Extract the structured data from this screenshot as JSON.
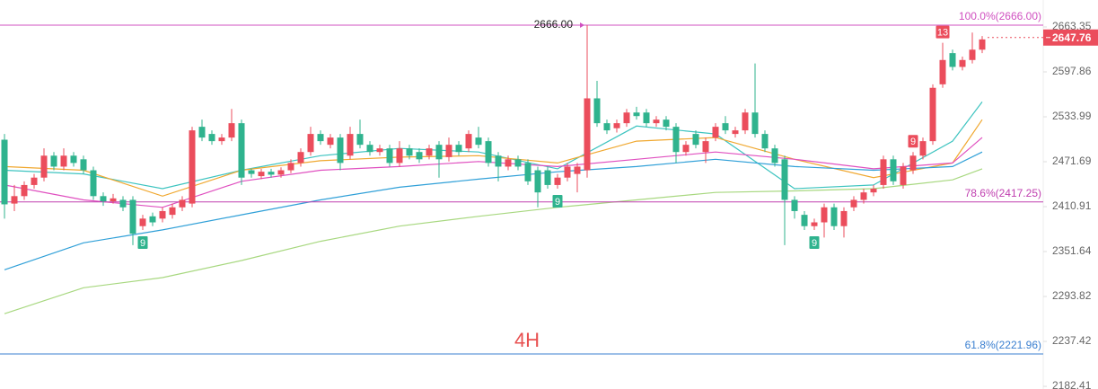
{
  "chart_data": {
    "type": "candlestick",
    "watermark": "4H",
    "log_scale": true,
    "ylim": [
      2179.2,
      2703.4
    ],
    "yticks": [
      2663.35,
      2597.86,
      2533.99,
      2471.69,
      2410.91,
      2351.64,
      2293.82,
      2237.42,
      2182.41
    ],
    "up_color": "#eb4d5c",
    "down_color": "#2fb38e",
    "categories": [
      null,
      null,
      null,
      null,
      null,
      null,
      null,
      null,
      null,
      null,
      null,
      null,
      null,
      null,
      null,
      null,
      null,
      null,
      null,
      null,
      null,
      null,
      null,
      null,
      null,
      null,
      null,
      null,
      null,
      null,
      null,
      null,
      null,
      null,
      null,
      null,
      null,
      null,
      null,
      null,
      null,
      null,
      null,
      null,
      null,
      null,
      null,
      null,
      null,
      null,
      null,
      null,
      null,
      null,
      null,
      null,
      null,
      null,
      null,
      null,
      null,
      null,
      null,
      null,
      null,
      null,
      null,
      null,
      null,
      null,
      null,
      null,
      null,
      null,
      null,
      null,
      null,
      null,
      null,
      null,
      null,
      null,
      null,
      null,
      null,
      null,
      null,
      null,
      null,
      null,
      null,
      null,
      null,
      null,
      null,
      null,
      null,
      null,
      null,
      null
    ],
    "open": [
      2502,
      2415,
      2425,
      2440,
      2450,
      2480,
      2465,
      2480,
      2475,
      2460,
      2425,
      2418,
      2420,
      2420,
      2385,
      2398,
      2395,
      2400,
      2410,
      2415,
      2520,
      2510,
      2500,
      2505,
      2525,
      2460,
      2452,
      2458,
      2454,
      2460,
      2470,
      2485,
      2510,
      2495,
      2505,
      2480,
      2510,
      2495,
      2485,
      2490,
      2470,
      2490,
      2485,
      2480,
      2495,
      2478,
      2495,
      2490,
      2505,
      2500,
      2480,
      2465,
      2475,
      2470,
      2460,
      2460,
      2440,
      2450,
      2455,
      2460,
      2560,
      2525,
      2518,
      2525,
      2540,
      2540,
      2525,
      2530,
      2520,
      2485,
      2510,
      2485,
      2505,
      2525,
      2510,
      2515,
      2540,
      2510,
      2490,
      2475,
      2420,
      2400,
      2385,
      2390,
      2410,
      2385,
      2410,
      2420,
      2430,
      2440,
      2475,
      2440,
      2460,
      2480,
      2500,
      2580,
      2625,
      2605,
      2615,
      2630
    ],
    "high": [
      2510,
      2440,
      2445,
      2455,
      2490,
      2485,
      2490,
      2485,
      2480,
      2465,
      2430,
      2428,
      2425,
      2425,
      2400,
      2403,
      2410,
      2415,
      2425,
      2520,
      2530,
      2515,
      2510,
      2545,
      2530,
      2462,
      2462,
      2462,
      2464,
      2475,
      2490,
      2520,
      2515,
      2510,
      2510,
      2520,
      2530,
      2500,
      2495,
      2495,
      2500,
      2495,
      2490,
      2495,
      2500,
      2505,
      2500,
      2515,
      2520,
      2505,
      2485,
      2480,
      2480,
      2475,
      2465,
      2465,
      2455,
      2470,
      2470,
      2666,
      2585,
      2530,
      2530,
      2545,
      2548,
      2545,
      2535,
      2535,
      2525,
      2500,
      2515,
      2505,
      2525,
      2535,
      2520,
      2545,
      2610,
      2515,
      2495,
      2480,
      2425,
      2405,
      2395,
      2415,
      2415,
      2410,
      2425,
      2435,
      2440,
      2480,
      2480,
      2470,
      2485,
      2505,
      2580,
      2640,
      2630,
      2620,
      2655,
      2650
    ],
    "low": [
      2395,
      2405,
      2420,
      2435,
      2445,
      2460,
      2460,
      2465,
      2455,
      2420,
      2412,
      2415,
      2405,
      2360,
      2380,
      2385,
      2390,
      2395,
      2405,
      2410,
      2500,
      2495,
      2495,
      2500,
      2440,
      2450,
      2448,
      2450,
      2450,
      2456,
      2465,
      2480,
      2495,
      2490,
      2460,
      2475,
      2490,
      2480,
      2480,
      2465,
      2465,
      2475,
      2470,
      2475,
      2450,
      2472,
      2480,
      2485,
      2490,
      2465,
      2445,
      2460,
      2460,
      2440,
      2410,
      2435,
      2435,
      2445,
      2430,
      2450,
      2520,
      2510,
      2512,
      2520,
      2530,
      2520,
      2520,
      2515,
      2470,
      2480,
      2490,
      2470,
      2500,
      2510,
      2505,
      2510,
      2505,
      2485,
      2465,
      2360,
      2395,
      2380,
      2380,
      2370,
      2380,
      2370,
      2405,
      2415,
      2425,
      2435,
      2440,
      2435,
      2455,
      2475,
      2495,
      2575,
      2600,
      2600,
      2610,
      2625
    ],
    "close": [
      2414,
      2425,
      2440,
      2450,
      2480,
      2465,
      2480,
      2470,
      2460,
      2425,
      2418,
      2422,
      2410,
      2375,
      2395,
      2390,
      2405,
      2410,
      2420,
      2515,
      2505,
      2500,
      2505,
      2525,
      2450,
      2455,
      2458,
      2454,
      2460,
      2470,
      2485,
      2510,
      2500,
      2505,
      2470,
      2510,
      2495,
      2485,
      2490,
      2470,
      2490,
      2480,
      2475,
      2490,
      2475,
      2495,
      2485,
      2510,
      2495,
      2470,
      2465,
      2475,
      2465,
      2445,
      2430,
      2440,
      2450,
      2465,
      2465,
      2560,
      2525,
      2515,
      2525,
      2540,
      2535,
      2525,
      2530,
      2520,
      2485,
      2495,
      2495,
      2500,
      2520,
      2515,
      2515,
      2540,
      2510,
      2490,
      2470,
      2420,
      2405,
      2385,
      2390,
      2410,
      2385,
      2405,
      2420,
      2430,
      2435,
      2475,
      2445,
      2465,
      2480,
      2500,
      2575,
      2615,
      2605,
      2615,
      2630,
      2645
    ],
    "moving_averages": [
      {
        "color": "#3ec4c0",
        "x": [
          0,
          8,
          16,
          24,
          32,
          40,
          48,
          56,
          64,
          72,
          80,
          88,
          96,
          99
        ],
        "values": [
          2460,
          2455,
          2435,
          2460,
          2480,
          2490,
          2485,
          2462,
          2521,
          2510,
          2435,
          2440,
          2500,
          2555
        ]
      },
      {
        "color": "#f0a830",
        "x": [
          0,
          8,
          16,
          24,
          32,
          40,
          48,
          56,
          64,
          72,
          80,
          88,
          96,
          99
        ],
        "values": [
          2465,
          2460,
          2425,
          2460,
          2473,
          2478,
          2480,
          2470,
          2500,
          2505,
          2475,
          2450,
          2470,
          2530
        ]
      },
      {
        "color": "#e050c0",
        "x": [
          0,
          8,
          16,
          24,
          32,
          40,
          48,
          56,
          64,
          72,
          80,
          88,
          96,
          99
        ],
        "values": [
          2440,
          2420,
          2410,
          2445,
          2460,
          2465,
          2472,
          2465,
          2475,
          2485,
          2475,
          2462,
          2470,
          2505
        ]
      },
      {
        "color": "#30a0d8",
        "x": [
          0,
          8,
          16,
          24,
          32,
          40,
          48,
          56,
          64,
          72,
          80,
          88,
          96,
          99
        ],
        "values": [
          2328,
          2363,
          2380,
          2400,
          2420,
          2437,
          2448,
          2458,
          2465,
          2475,
          2465,
          2460,
          2465,
          2485
        ]
      },
      {
        "color": "#a8d880",
        "x": [
          0,
          8,
          16,
          24,
          32,
          40,
          48,
          56,
          64,
          72,
          80,
          88,
          96,
          99
        ],
        "values": [
          2272,
          2305,
          2318,
          2340,
          2365,
          2385,
          2398,
          2410,
          2420,
          2430,
          2432,
          2435,
          2447,
          2462
        ]
      }
    ],
    "levels": [
      {
        "label": "100.0%(2666.00)",
        "value": 2666,
        "color": "#d050c0"
      },
      {
        "label": "78.6%(2417.25)",
        "value": 2417.25,
        "color": "#c040b0"
      },
      {
        "label": "61.8%(2221.96)",
        "value": 2221.96,
        "color": "#3a7fd0"
      }
    ],
    "high_marker": {
      "value": 2666,
      "label": "2666.00",
      "candle": 59
    },
    "last_price": 2647.76,
    "td_counts": [
      {
        "label": "9",
        "candle": 14,
        "side": "below",
        "color": "#2fb38e"
      },
      {
        "label": "9",
        "candle": 56,
        "side": "below",
        "color": "#2fb38e"
      },
      {
        "label": "9",
        "candle": 82,
        "side": "below",
        "color": "#2fb38e"
      },
      {
        "label": "9",
        "candle": 92,
        "side": "above",
        "color": "#eb4d5c"
      },
      {
        "label": "13",
        "candle": 95,
        "side": "above",
        "color": "#eb4d5c"
      }
    ]
  }
}
